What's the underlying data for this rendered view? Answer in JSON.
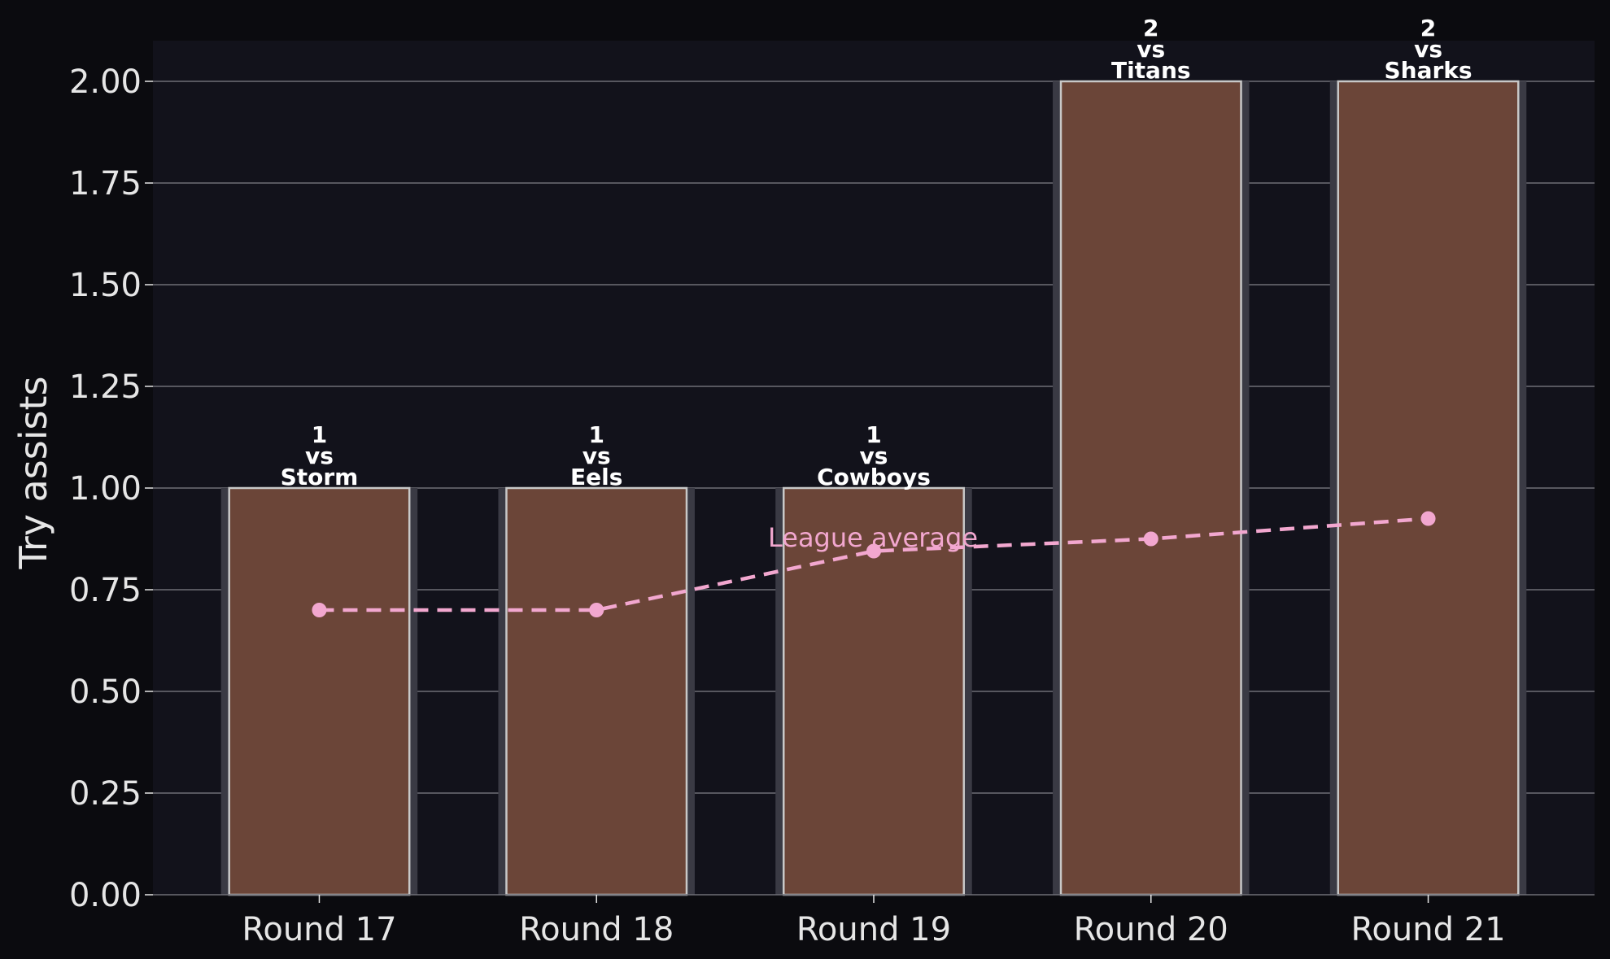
{
  "chart_data": {
    "type": "bar",
    "categories": [
      "Round 17",
      "Round 18",
      "Round 19",
      "Round 20",
      "Round 21"
    ],
    "series": [
      {
        "values": [
          1,
          1,
          1,
          2,
          2
        ]
      }
    ],
    "bar_labels": [
      [
        "1",
        "vs",
        "Storm"
      ],
      [
        "1",
        "vs",
        "Eels"
      ],
      [
        "1",
        "vs",
        "Cowboys"
      ],
      [
        "2",
        "vs",
        "Titans"
      ],
      [
        "2",
        "vs",
        "Sharks"
      ]
    ],
    "line_series": {
      "name": "League average",
      "values": [
        0.7,
        0.7,
        0.845,
        0.875,
        0.925
      ]
    },
    "ylabel": "Try assists",
    "xlabel": "",
    "ylim": [
      0,
      2.1
    ],
    "yticks": [
      "0.00",
      "0.25",
      "0.50",
      "0.75",
      "1.00",
      "1.25",
      "1.50",
      "1.75",
      "2.00"
    ],
    "grid": "horizontal",
    "colors": {
      "background": "#0b0b0f",
      "plot_background": "#12121b",
      "bar_fill": "#6b4538",
      "bar_edge": "#c8c8c8",
      "bar_shadow": "#3a3a44",
      "grid": "#6e6e76",
      "average_line": "#f2a7cf",
      "text": "#e6e6e6"
    }
  }
}
